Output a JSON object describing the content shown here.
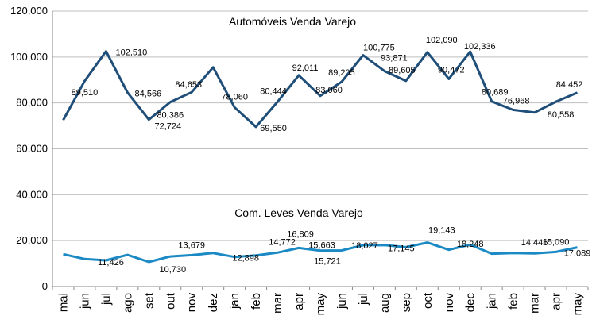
{
  "chart_data": {
    "type": "line",
    "categories": [
      "mai",
      "jun",
      "jul",
      "ago",
      "set",
      "out",
      "nov",
      "dez",
      "jan",
      "feb",
      "mar",
      "apr",
      "may",
      "jun",
      "jul",
      "aug",
      "sep",
      "oct",
      "nov",
      "dec",
      "jan",
      "feb",
      "mar",
      "apr",
      "may"
    ],
    "ylim": [
      0,
      120000
    ],
    "yticks": [
      0,
      20000,
      40000,
      60000,
      80000,
      100000,
      120000
    ],
    "ytick_labels": [
      "0",
      "20,000",
      "40,000",
      "60,000",
      "80,000",
      "100,000",
      "120,000"
    ],
    "grid": "horizontal",
    "series": [
      {
        "name": "Automóveis Venda Varejo",
        "color": "#1f4e79",
        "values": [
          72500,
          89510,
          102510,
          84566,
          72724,
          80386,
          84653,
          95500,
          78060,
          69550,
          80444,
          92011,
          83060,
          89205,
          100775,
          93871,
          89605,
          102090,
          90472,
          102336,
          80689,
          76968,
          75800,
          80558,
          84452
        ],
        "labels": [
          "",
          "89,510",
          "102,510",
          "84,566",
          "72,724",
          "80,386",
          "84,653",
          "",
          "78,060",
          "69,550",
          "80,444",
          "92,011",
          "83,060",
          "89,205",
          "100,775",
          "93,871",
          "89,605",
          "102,090",
          "90,472",
          "102,336",
          "80,689",
          "76,968",
          "",
          "80,558",
          "84,452"
        ]
      },
      {
        "name": "Com. Leves Venda Varejo",
        "color": "#1b8ac4",
        "values": [
          14100,
          12000,
          11426,
          13800,
          10730,
          13100,
          13679,
          14600,
          12898,
          13600,
          14772,
          16809,
          15663,
          15721,
          18027,
          18100,
          17145,
          19143,
          16000,
          18248,
          14300,
          14600,
          14446,
          15090,
          17089
        ],
        "labels": [
          "",
          "",
          "11,426",
          "",
          "10,730",
          "",
          "13,679",
          "",
          "12,898",
          "",
          "14,772",
          "16,809",
          "15,663",
          "15,721",
          "18,027",
          "",
          "17,145",
          "19,143",
          "",
          "18,248",
          "",
          "",
          "14,446",
          "15,090",
          "17,089"
        ]
      }
    ]
  }
}
